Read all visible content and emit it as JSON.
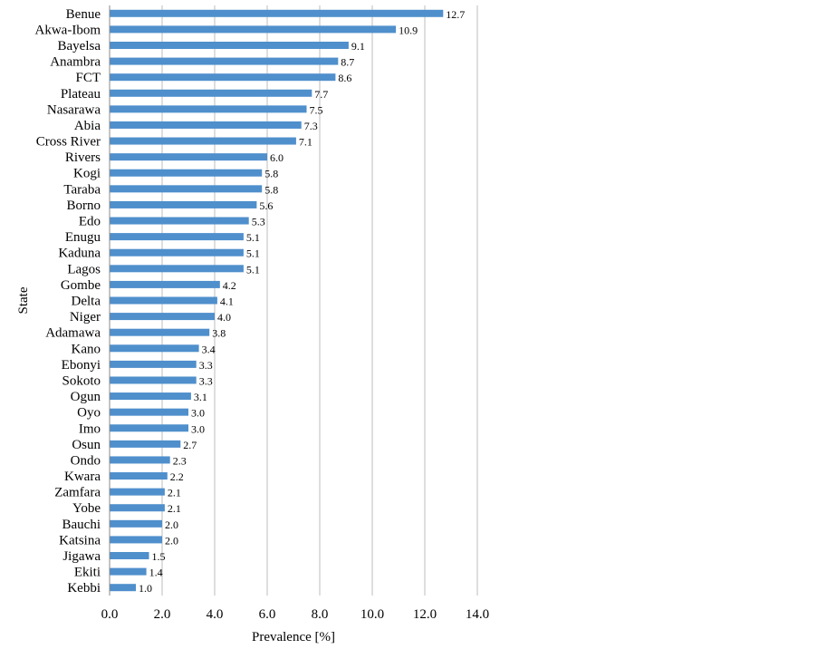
{
  "chart_data": {
    "type": "bar",
    "orientation": "horizontal",
    "categories": [
      "Benue",
      "Akwa-Ibom",
      "Bayelsa",
      "Anambra",
      "FCT",
      "Plateau",
      "Nasarawa",
      "Abia",
      "Cross River",
      "Rivers",
      "Kogi",
      "Taraba",
      "Borno",
      "Edo",
      "Enugu",
      "Kaduna",
      "Lagos",
      "Gombe",
      "Delta",
      "Niger",
      "Adamawa",
      "Kano",
      "Ebonyi",
      "Sokoto",
      "Ogun",
      "Oyo",
      "Imo",
      "Osun",
      "Ondo",
      "Kwara",
      "Zamfara",
      "Yobe",
      "Bauchi",
      "Katsina",
      "Jigawa",
      "Ekiti",
      "Kebbi"
    ],
    "values": [
      12.7,
      10.9,
      9.1,
      8.7,
      8.6,
      7.7,
      7.5,
      7.3,
      7.1,
      6.0,
      5.8,
      5.8,
      5.6,
      5.3,
      5.1,
      5.1,
      5.1,
      4.2,
      4.1,
      4.0,
      3.8,
      3.4,
      3.3,
      3.3,
      3.1,
      3.0,
      3.0,
      2.7,
      2.3,
      2.2,
      2.1,
      2.1,
      2.0,
      2.0,
      1.5,
      1.4,
      1.0
    ],
    "value_labels": [
      "12.7",
      "10.9",
      "9.1",
      "8.7",
      "8.6",
      "7.7",
      "7.5",
      "7.3",
      "7.1",
      "6.0",
      "5.8",
      "5.8",
      "5.6",
      "5.3",
      "5.1",
      "5.1",
      "5.1",
      "4.2",
      "4.1",
      "4.0",
      "3.8",
      "3.4",
      "3.3",
      "3.3",
      "3.1",
      "3.0",
      "3.0",
      "2.7",
      "2.3",
      "2.2",
      "2.1",
      "2.1",
      "2.0",
      "2.0",
      "1.5",
      "1.4",
      "1.0"
    ],
    "xlabel": "Prevalence [%]",
    "ylabel": "State",
    "xlim": [
      0,
      14
    ],
    "xticks": [
      "0.0",
      "2.0",
      "4.0",
      "6.0",
      "8.0",
      "10.0",
      "12.0",
      "14.0"
    ],
    "grid": "vertical",
    "bar_color": "#4f8fcc",
    "grid_color": "#bdbdbd"
  }
}
